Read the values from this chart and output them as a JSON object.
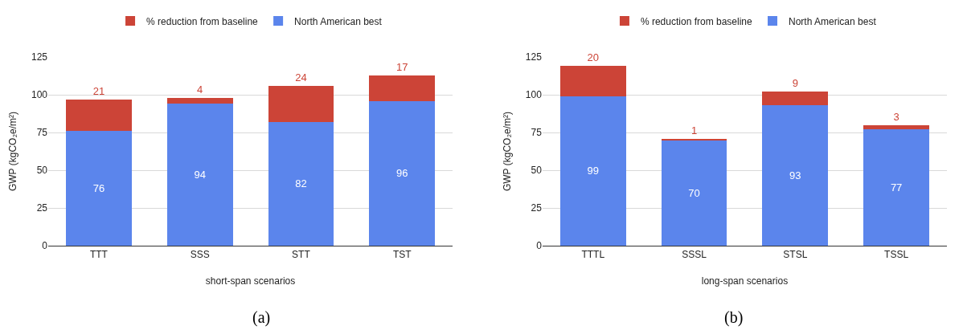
{
  "chart_data": [
    {
      "type": "bar",
      "stacked": true,
      "categories": [
        "TTT",
        "SSS",
        "STT",
        "TST"
      ],
      "xlabel": "short-span scenarios",
      "ylabel": "GWP (kgCO₂e/m²)",
      "ylim": [
        0,
        125
      ],
      "yticks": [
        0,
        25,
        50,
        75,
        100,
        125
      ],
      "grid": "y",
      "legend": "top",
      "data_labels": true,
      "annotations": [
        "(a)"
      ],
      "series": [
        {
          "name": "North American best",
          "color": "#5b85ec",
          "values": [
            76,
            94,
            82,
            96
          ]
        },
        {
          "name": "% reduction from baseline",
          "color": "#cc4437",
          "values": [
            21,
            4,
            24,
            17
          ]
        }
      ]
    },
    {
      "type": "bar",
      "stacked": true,
      "categories": [
        "TTTL",
        "SSSL",
        "STSL",
        "TSSL"
      ],
      "xlabel": "long-span scenarios",
      "ylabel": "GWP (kgCO₂e/m²)",
      "ylim": [
        0,
        125
      ],
      "yticks": [
        0,
        25,
        50,
        75,
        100,
        125
      ],
      "grid": "y",
      "legend": "top",
      "data_labels": true,
      "annotations": [
        "(b)"
      ],
      "series": [
        {
          "name": "North American best",
          "color": "#5b85ec",
          "values": [
            99,
            70,
            93,
            77
          ]
        },
        {
          "name": "% reduction from baseline",
          "color": "#cc4437",
          "values": [
            20,
            1,
            9,
            3
          ]
        }
      ]
    }
  ]
}
